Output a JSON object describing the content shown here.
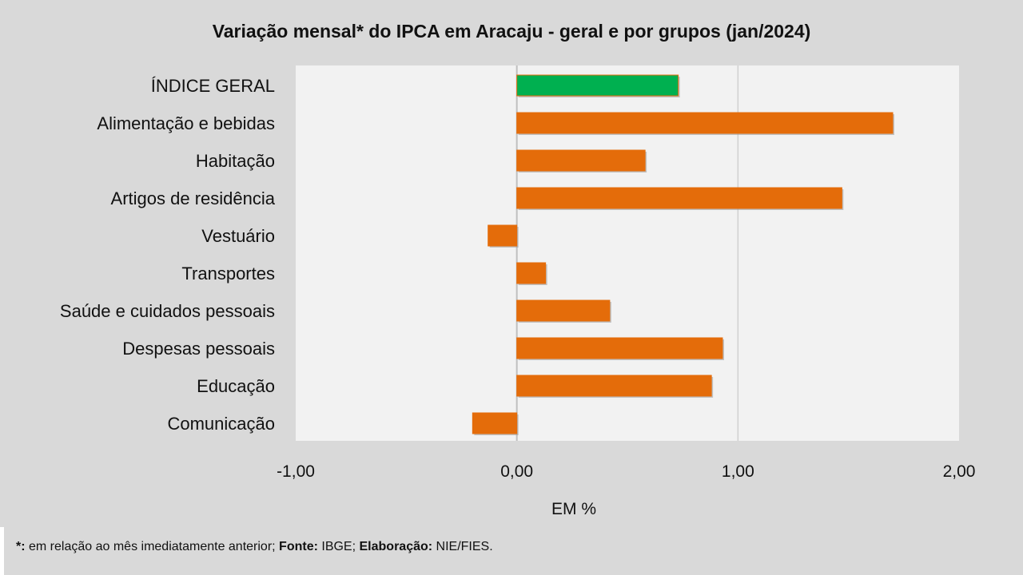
{
  "chart_data": {
    "type": "bar",
    "orientation": "horizontal",
    "title": "Variação  mensal* do IPCA em Aracaju  - geral e por grupos  (jan/2024)",
    "xlabel": "EM %",
    "ylabel": "",
    "xlim": [
      -1,
      2
    ],
    "xticks": [
      -1,
      0,
      1,
      2
    ],
    "xtick_labels": [
      "-1,00",
      "0,00",
      "1,00",
      "2,00"
    ],
    "grid": "vertical",
    "categories": [
      "ÍNDICE GERAL",
      "Alimentação e bebidas",
      "Habitação",
      "Artigos de residência",
      "Vestuário",
      "Transportes",
      "Saúde e cuidados pessoais",
      "Despesas pessoais",
      "Educação",
      "Comunicação"
    ],
    "values": [
      0.73,
      1.7,
      0.58,
      1.47,
      -0.13,
      0.13,
      0.42,
      0.93,
      0.88,
      -0.2
    ],
    "colors": [
      "#00b050",
      "#e46c0a",
      "#e46c0a",
      "#e46c0a",
      "#e46c0a",
      "#e46c0a",
      "#e46c0a",
      "#e46c0a",
      "#e46c0a",
      "#e46c0a"
    ]
  },
  "footer": {
    "note_mark": "*:",
    "note_text": " em relação ao mês imediatamente  anterior; ",
    "source_label": "Fonte:",
    "source_value": " IBGE; ",
    "credit_label": "Elaboração:",
    "credit_value": " NIE/FIES."
  }
}
